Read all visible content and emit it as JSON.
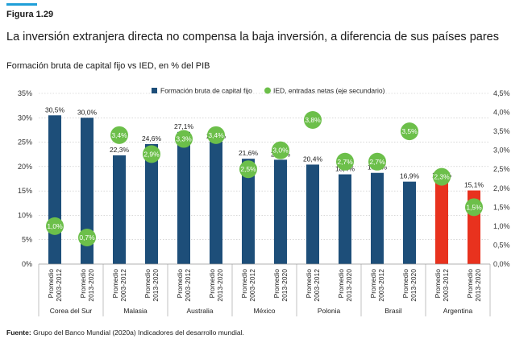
{
  "figure_label": "Figura 1.29",
  "title": "La inversión extranjera directa no compensa la baja inversión, a diferencia de sus países pares",
  "subtitle": "Formación bruta de capital fijo vs IED, en % del PIB",
  "source_label": "Fuente:",
  "source_text": " Grupo del Banco Mundial (2020a) Indicadores del desarrollo mundial.",
  "colors": {
    "bar": "#1d4e79",
    "bar_highlight": "#e8321e",
    "dot": "#6cbf4a",
    "grid": "#bfbfbf",
    "accent": "#1f9fd8"
  },
  "chart_data": {
    "type": "bar",
    "title": "Formación bruta de capital fijo vs IED, en % del PIB",
    "legend_position": "top",
    "y_axis": {
      "ticks": [
        "0%",
        "5%",
        "10%",
        "15%",
        "20%",
        "25%",
        "30%",
        "35%"
      ],
      "ylim": [
        0,
        35
      ]
    },
    "y2_axis": {
      "ticks": [
        "0,0%",
        "0,5%",
        "1,0%",
        "1,5%",
        "2,0%",
        "2,5%",
        "3,0%",
        "3,5%",
        "4,0%",
        "4,5%"
      ],
      "ylim": [
        0,
        4.5
      ]
    },
    "groups": [
      "Corea del Sur",
      "Malasia",
      "Australia",
      "México",
      "Polonia",
      "Brasil",
      "Argentina"
    ],
    "periods": [
      "Promedio\n2003-2012",
      "Promedio\n2013-2020"
    ],
    "categories": [
      "Promedio 2003-2012",
      "Promedio 2013-2020",
      "Promedio 2003-2012",
      "Promedio 2013-2020",
      "Promedio 2003-2012",
      "Promedio 2013-2020",
      "Promedio 2003-2012",
      "Promedio 2013-2020",
      "Promedio 2003-2012",
      "Promedio 2013-2020",
      "Promedio 2003-2012",
      "Promedio 2013-2020",
      "Promedio 2003-2012",
      "Promedio 2013-2020"
    ],
    "series": [
      {
        "name": "Formación bruta de capital fijo",
        "type": "bar",
        "axis": "primary",
        "values": [
          30.5,
          30.0,
          22.3,
          24.6,
          27.1,
          25.1,
          21.6,
          21.4,
          20.4,
          18.4,
          18.7,
          16.9,
          17.1,
          15.1
        ],
        "labels": [
          "30,5%",
          "30,0%",
          "22,3%",
          "24,6%",
          "27,1%",
          "25,1%",
          "21,6%",
          "21,4%",
          "20,4%",
          "18,4%",
          "18,7%",
          "16,9%",
          "17,1%",
          "15,1%"
        ],
        "highlight_group": "Argentina"
      },
      {
        "name": "IED, entradas netas (eje secundario)",
        "type": "scatter",
        "axis": "secondary",
        "values": [
          1.0,
          0.7,
          3.4,
          2.9,
          3.3,
          3.4,
          2.5,
          3.0,
          3.8,
          2.7,
          2.7,
          3.5,
          2.3,
          1.5
        ],
        "labels": [
          "1,0%",
          "0,7%",
          "3,4%",
          "2,9%",
          "3,3%",
          "3,4%",
          "2,5%",
          "3,0%",
          "3,8%",
          "2,7%",
          "2,7%",
          "3,5%",
          "2,3%",
          "1,5%"
        ]
      }
    ]
  }
}
